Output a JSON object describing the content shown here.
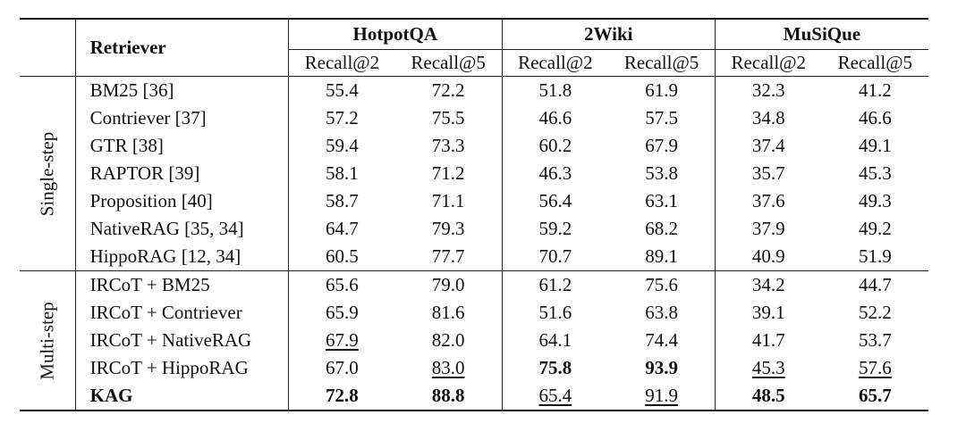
{
  "header": {
    "retriever": "Retriever",
    "datasets": [
      "HotpotQA",
      "2Wiki",
      "MuSiQue"
    ],
    "metrics": [
      "Recall@2",
      "Recall@5",
      "Recall@2",
      "Recall@5",
      "Recall@2",
      "Recall@5"
    ]
  },
  "groups": [
    {
      "label": "Single-step",
      "rows": [
        {
          "retriever": "BM25 [36]",
          "values": [
            "55.4",
            "72.2",
            "51.8",
            "61.9",
            "32.3",
            "41.2"
          ],
          "bold": [],
          "underline": []
        },
        {
          "retriever": "Contriever [37]",
          "values": [
            "57.2",
            "75.5",
            "46.6",
            "57.5",
            "34.8",
            "46.6"
          ],
          "bold": [],
          "underline": []
        },
        {
          "retriever": "GTR [38]",
          "values": [
            "59.4",
            "73.3",
            "60.2",
            "67.9",
            "37.4",
            "49.1"
          ],
          "bold": [],
          "underline": []
        },
        {
          "retriever": "RAPTOR [39]",
          "values": [
            "58.1",
            "71.2",
            "46.3",
            "53.8",
            "35.7",
            "45.3"
          ],
          "bold": [],
          "underline": []
        },
        {
          "retriever": "Proposition [40]",
          "values": [
            "58.7",
            "71.1",
            "56.4",
            "63.1",
            "37.6",
            "49.3"
          ],
          "bold": [],
          "underline": []
        },
        {
          "retriever": "NativeRAG [35, 34]",
          "values": [
            "64.7",
            "79.3",
            "59.2",
            "68.2",
            "37.9",
            "49.2"
          ],
          "bold": [],
          "underline": []
        },
        {
          "retriever": "HippoRAG [12, 34]",
          "values": [
            "60.5",
            "77.7",
            "70.7",
            "89.1",
            "40.9",
            "51.9"
          ],
          "bold": [],
          "underline": []
        }
      ]
    },
    {
      "label": "Multi-step",
      "rows": [
        {
          "retriever": "IRCoT + BM25",
          "values": [
            "65.6",
            "79.0",
            "61.2",
            "75.6",
            "34.2",
            "44.7"
          ],
          "bold": [],
          "underline": []
        },
        {
          "retriever": "IRCoT + Contriever",
          "values": [
            "65.9",
            "81.6",
            "51.6",
            "63.8",
            "39.1",
            "52.2"
          ],
          "bold": [],
          "underline": []
        },
        {
          "retriever": "IRCoT + NativeRAG",
          "values": [
            "67.9",
            "82.0",
            "64.1",
            "74.4",
            "41.7",
            "53.7"
          ],
          "bold": [],
          "underline": [
            0
          ]
        },
        {
          "retriever": "IRCoT + HippoRAG",
          "values": [
            "67.0",
            "83.0",
            "75.8",
            "93.9",
            "45.3",
            "57.6"
          ],
          "bold": [
            2,
            3
          ],
          "underline": [
            1,
            4,
            5
          ]
        },
        {
          "retriever": "KAG",
          "values": [
            "72.8",
            "88.8",
            "65.4",
            "91.9",
            "48.5",
            "65.7"
          ],
          "bold": [
            0,
            1,
            4,
            5
          ],
          "underline": [
            2,
            3
          ],
          "retriever_bold": true
        }
      ]
    }
  ]
}
